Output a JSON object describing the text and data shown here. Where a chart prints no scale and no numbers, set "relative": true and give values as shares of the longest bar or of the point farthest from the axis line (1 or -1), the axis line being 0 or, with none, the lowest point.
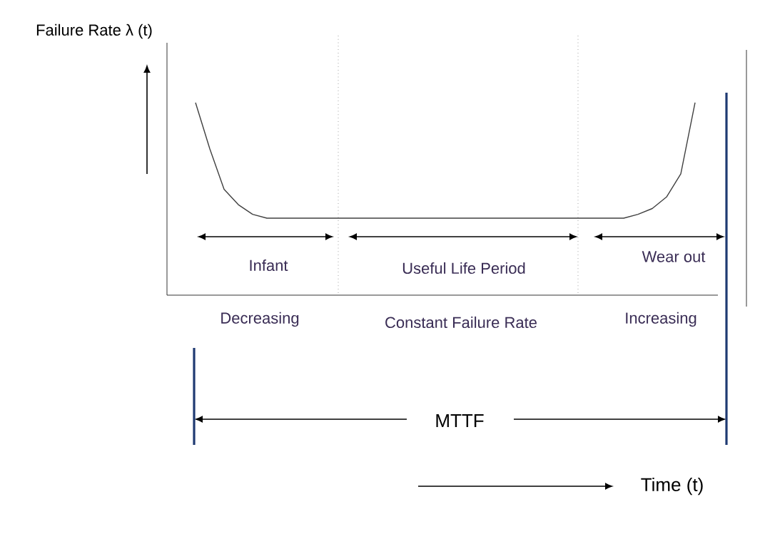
{
  "chart_data": {
    "type": "line",
    "relative": true,
    "color": "#404040",
    "categories": [
      null,
      null,
      null,
      null,
      null,
      null,
      null,
      null,
      null,
      null,
      null,
      null,
      null,
      null,
      null,
      null,
      null,
      null,
      null,
      null,
      null,
      null,
      null,
      null,
      null,
      null,
      null,
      null,
      null,
      null,
      null,
      null,
      null,
      null,
      null,
      null
    ],
    "values": [
      1.0,
      0.76,
      0.55,
      0.47,
      0.42,
      0.4,
      0.4,
      0.4,
      0.4,
      0.4,
      0.4,
      0.4,
      0.4,
      0.4,
      0.4,
      0.4,
      0.4,
      0.4,
      0.4,
      0.4,
      0.4,
      0.4,
      0.4,
      0.4,
      0.4,
      0.4,
      0.4,
      0.4,
      0.4,
      0.4,
      0.4,
      0.42,
      0.45,
      0.51,
      0.63,
      1.0
    ],
    "ylabel": "Failure Rate λ (t)",
    "annotations": [
      "Infant",
      "Useful Life Period",
      "Wear out",
      "Decreasing",
      "Constant Failure Rate",
      "Increasing",
      "MTTF",
      "Time (t)"
    ]
  }
}
